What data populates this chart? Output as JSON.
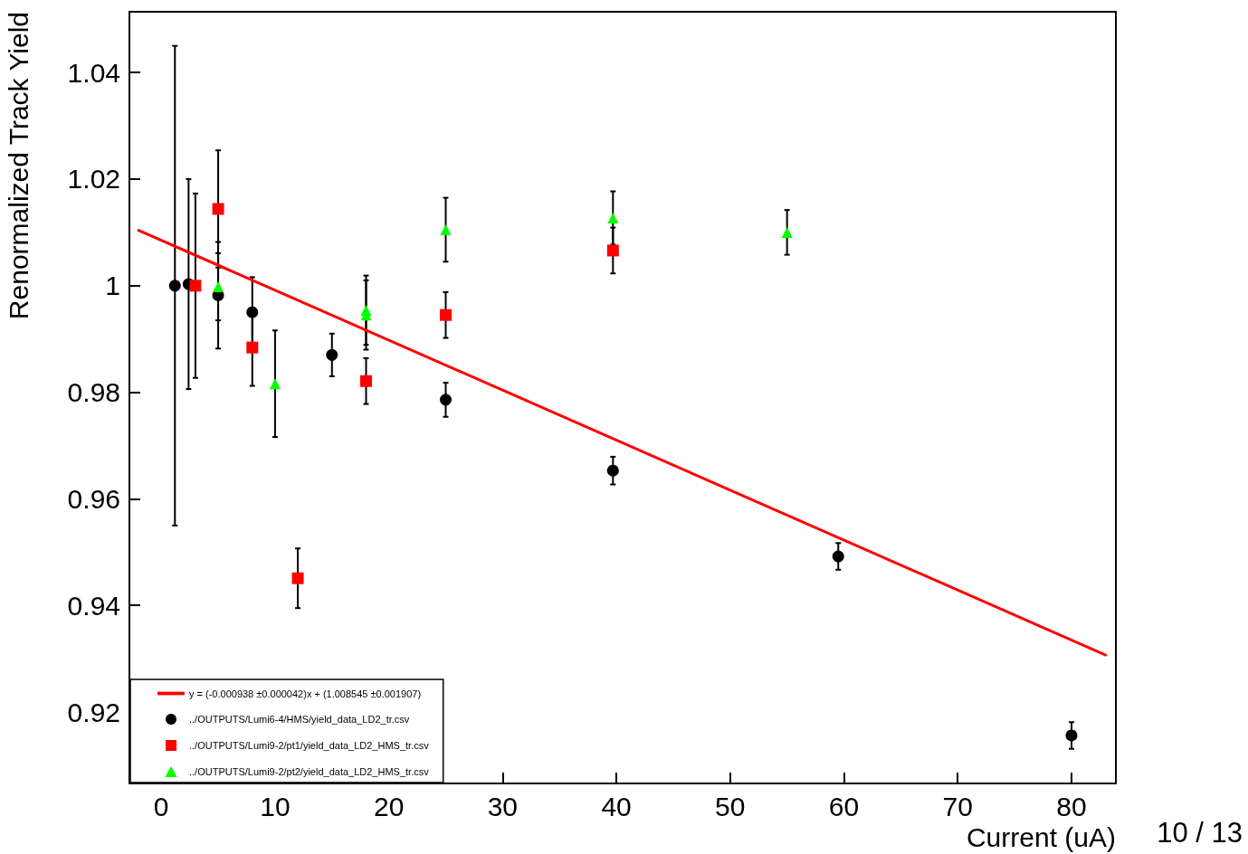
{
  "chart_data": {
    "type": "scatter",
    "xlabel": "Current (uA)",
    "ylabel": "Renormalized Track Yield",
    "xlim": [
      -2.8,
      83.9
    ],
    "ylim": [
      0.9066,
      1.0514
    ],
    "xticks": [
      0,
      10,
      20,
      30,
      40,
      50,
      60,
      70,
      80
    ],
    "yticks": [
      0.92,
      0.94,
      0.96,
      0.98,
      1,
      1.02,
      1.04
    ],
    "grid": false,
    "legend": "bottom left",
    "annotations": [
      "10 / 13"
    ],
    "series": [
      {
        "name": "y = (-0.000938 ±0.000042)x + (1.008545 ±0.001907)",
        "type": "line",
        "color": "#ff0000",
        "marker": "none",
        "line_style": "solid",
        "x": [
          -2,
          83
        ],
        "values": [
          1.0104,
          0.9307
        ]
      },
      {
        "name": "../OUTPUTS/Lumi6-4/HMS/yield_data_LD2_tr.csv",
        "color": "#000000",
        "marker": "circle",
        "x": [
          1.2,
          2.4,
          5,
          8,
          15,
          25,
          39.7,
          59.5,
          80
        ],
        "values": [
          1.0,
          1.0003,
          0.9982,
          0.995,
          0.987,
          0.9786,
          0.9653,
          0.9492,
          0.9156
        ],
        "errors": [
          0.045,
          0.0197,
          0.01,
          0.0066,
          0.004,
          0.0032,
          0.0026,
          0.0025,
          0.0025
        ]
      },
      {
        "name": "../OUTPUTS/Lumi9-2/pt1/yield_data_LD2_HMS_tr.csv",
        "color": "#ff0000",
        "marker": "square",
        "x": [
          3,
          5,
          8,
          12,
          18,
          25,
          39.7
        ],
        "values": [
          1.0,
          1.0144,
          0.9884,
          0.9451,
          0.9821,
          0.9945,
          1.0066
        ],
        "errors": [
          0.0173,
          0.011,
          0.0072,
          0.0056,
          0.0043,
          0.0043,
          0.0043
        ]
      },
      {
        "name": "../OUTPUTS/Lumi9-2/pt2/yield_data_LD2_HMS_tr.csv",
        "color": "#00ff00",
        "marker": "triangle",
        "x": [
          5,
          10,
          18,
          18,
          25,
          39.7,
          55
        ],
        "values": [
          0.9998,
          0.9816,
          0.9954,
          0.9945,
          1.0105,
          1.0127,
          1.01
        ],
        "errors": [
          0.0063,
          0.01,
          0.0065,
          0.0065,
          0.006,
          0.005,
          0.0042
        ]
      }
    ]
  }
}
